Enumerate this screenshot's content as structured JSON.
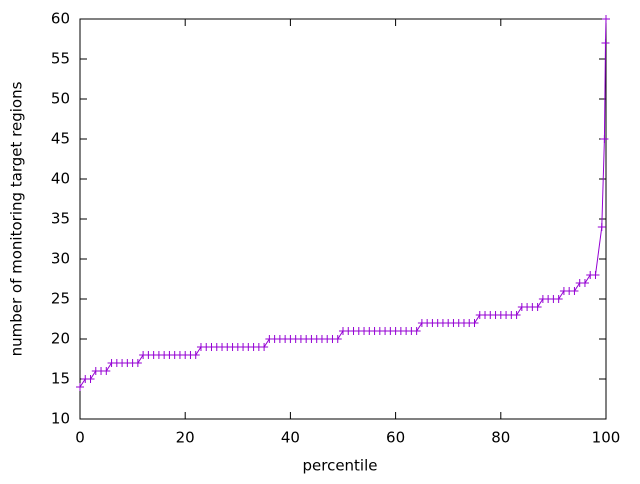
{
  "chart_data": {
    "type": "line",
    "xlabel": "percentile",
    "ylabel": "number of monitoring target regions",
    "x": [
      0,
      1,
      2,
      3,
      4,
      5,
      6,
      7,
      8,
      9,
      10,
      11,
      12,
      13,
      14,
      15,
      16,
      17,
      18,
      19,
      20,
      21,
      22,
      23,
      24,
      25,
      26,
      27,
      28,
      29,
      30,
      31,
      32,
      33,
      34,
      35,
      36,
      37,
      38,
      39,
      40,
      41,
      42,
      43,
      44,
      45,
      46,
      47,
      48,
      49,
      50,
      51,
      52,
      53,
      54,
      55,
      56,
      57,
      58,
      59,
      60,
      61,
      62,
      63,
      64,
      65,
      66,
      67,
      68,
      69,
      70,
      71,
      72,
      73,
      74,
      75,
      76,
      77,
      78,
      79,
      80,
      81,
      82,
      83,
      84,
      85,
      86,
      87,
      88,
      89,
      90,
      91,
      92,
      93,
      94,
      95,
      96,
      97,
      98,
      99.2,
      99.7,
      99.9,
      100
    ],
    "series": [
      {
        "color": "#9400d3",
        "values": [
          14,
          15,
          15,
          16,
          16,
          16,
          17,
          17,
          17,
          17,
          17,
          17,
          18,
          18,
          18,
          18,
          18,
          18,
          18,
          18,
          18,
          18,
          18,
          19,
          19,
          19,
          19,
          19,
          19,
          19,
          19,
          19,
          19,
          19,
          19,
          19,
          20,
          20,
          20,
          20,
          20,
          20,
          20,
          20,
          20,
          20,
          20,
          20,
          20,
          20,
          21,
          21,
          21,
          21,
          21,
          21,
          21,
          21,
          21,
          21,
          21,
          21,
          21,
          21,
          21,
          22,
          22,
          22,
          22,
          22,
          22,
          22,
          22,
          22,
          22,
          22,
          23,
          23,
          23,
          23,
          23,
          23,
          23,
          23,
          24,
          24,
          24,
          24,
          25,
          25,
          25,
          25,
          26,
          26,
          26,
          27,
          27,
          28,
          28,
          34,
          45,
          57,
          60
        ]
      }
    ],
    "xlim": [
      0,
      100
    ],
    "xticks": [
      0,
      20,
      40,
      60,
      80,
      100
    ],
    "ylim": [
      10,
      60
    ],
    "yticks": [
      10,
      15,
      20,
      25,
      30,
      35,
      40,
      45,
      50,
      55,
      60
    ]
  }
}
